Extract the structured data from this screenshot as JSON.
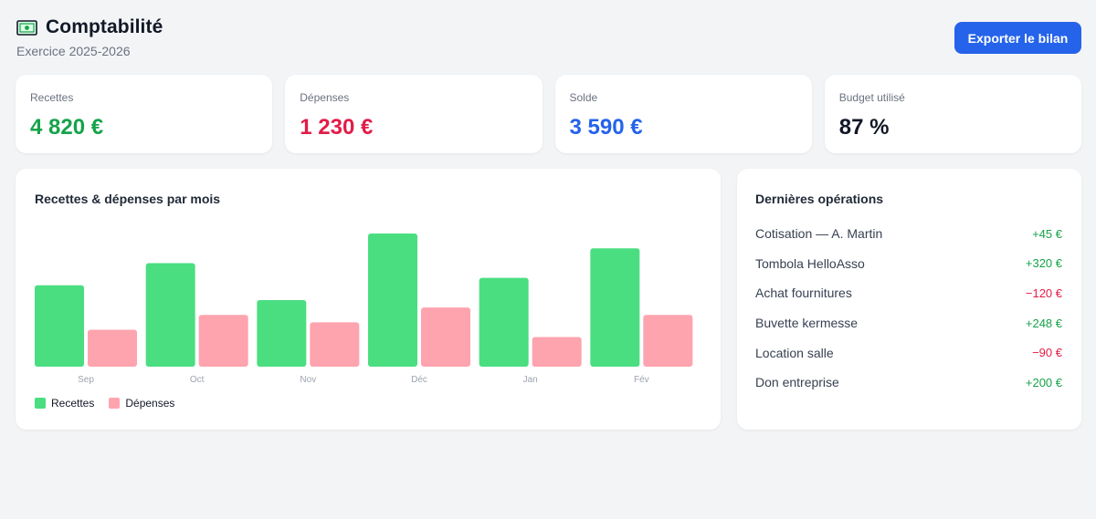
{
  "header": {
    "icon": "banknote-icon",
    "title": "Comptabilité",
    "subtitle": "Exercice 2025-2026",
    "export_label": "Exporter le bilan"
  },
  "colors": {
    "accent": "#2563eb",
    "positive": "#16a34a",
    "negative": "#e11d48",
    "bar_income": "#4ade80",
    "bar_expense": "#fda4af"
  },
  "kpis": [
    {
      "label": "Recettes",
      "value": "4 820 €",
      "color": "#16a34a"
    },
    {
      "label": "Dépenses",
      "value": "1 230 €",
      "color": "#e11d48"
    },
    {
      "label": "Solde",
      "value": "3 590 €",
      "color": "#2563eb"
    },
    {
      "label": "Budget utilisé",
      "value": "87 %",
      "color": "#111827"
    }
  ],
  "chart": {
    "title": "Recettes & dépenses par mois"
  },
  "chart_data": {
    "type": "bar",
    "categories": [
      "Sep",
      "Oct",
      "Nov",
      "Déc",
      "Jan",
      "Fév"
    ],
    "series": [
      {
        "name": "Recettes",
        "values": [
          550,
          700,
          450,
          900,
          600,
          800
        ]
      },
      {
        "name": "Dépenses",
        "values": [
          250,
          350,
          300,
          400,
          200,
          350
        ]
      }
    ],
    "ylim": [
      0,
      900
    ],
    "grid": false,
    "legend": "bottom-left"
  },
  "operations": {
    "title": "Dernières opérations",
    "items": [
      {
        "label": "Cotisation — A. Martin",
        "amount": "+45 €",
        "sign": "pos"
      },
      {
        "label": "Tombola HelloAsso",
        "amount": "+320 €",
        "sign": "pos"
      },
      {
        "label": "Achat fournitures",
        "amount": "−120 €",
        "sign": "neg"
      },
      {
        "label": "Buvette kermesse",
        "amount": "+248 €",
        "sign": "pos"
      },
      {
        "label": "Location salle",
        "amount": "−90 €",
        "sign": "neg"
      },
      {
        "label": "Don entreprise",
        "amount": "+200 €",
        "sign": "pos"
      }
    ]
  }
}
